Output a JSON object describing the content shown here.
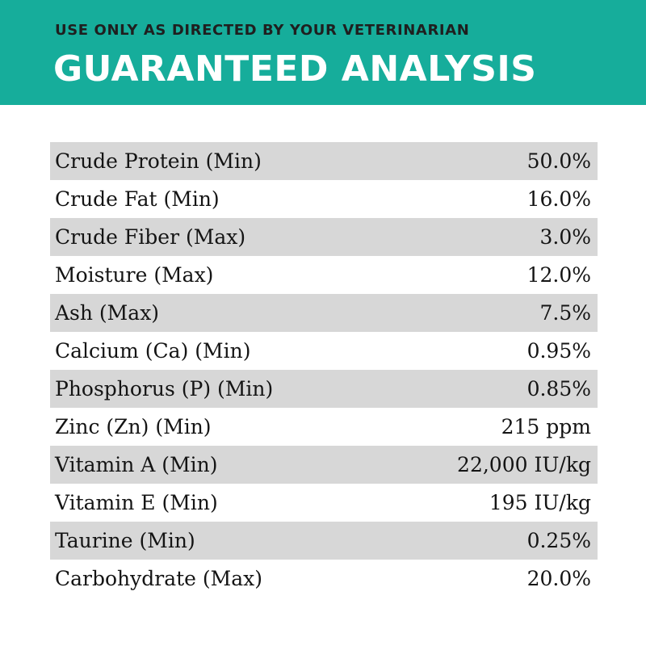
{
  "header": {
    "subtitle": "USE ONLY AS DIRECTED BY YOUR VETERINARIAN",
    "title": "GUARANTEED ANALYSIS",
    "background_color": "#16ad9b"
  },
  "analysis": {
    "rows": [
      {
        "name": "Crude Protein (Min)",
        "value": "50.0%"
      },
      {
        "name": "Crude Fat (Min)",
        "value": "16.0%"
      },
      {
        "name": "Crude Fiber (Max)",
        "value": "3.0%"
      },
      {
        "name": "Moisture (Max)",
        "value": "12.0%"
      },
      {
        "name": "Ash (Max)",
        "value": "7.5%"
      },
      {
        "name": "Calcium (Ca) (Min)",
        "value": "0.95%"
      },
      {
        "name": "Phosphorus (P) (Min)",
        "value": "0.85%"
      },
      {
        "name": "Zinc (Zn) (Min)",
        "value": "215 ppm"
      },
      {
        "name": "Vitamin A (Min)",
        "value": "22,000 IU/kg"
      },
      {
        "name": "Vitamin E (Min)",
        "value": "195 IU/kg"
      },
      {
        "name": "Taurine (Min)",
        "value": "0.25%"
      },
      {
        "name": "Carbohydrate (Max)",
        "value": "20.0%"
      }
    ],
    "shaded_row_color": "#d7d7d7"
  }
}
